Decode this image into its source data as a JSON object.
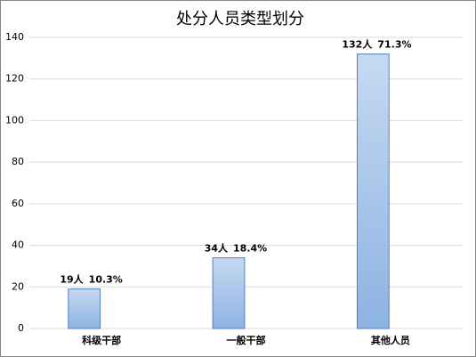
{
  "chart_data": {
    "type": "bar",
    "title": "处分人员类型划分",
    "categories": [
      "科级干部",
      "一般干部",
      "其他人员"
    ],
    "values": [
      19,
      34,
      132
    ],
    "value_labels": [
      "19人",
      "34人",
      "132人"
    ],
    "share_labels": [
      "10.3%",
      "18.4%",
      "71.3%"
    ],
    "color": "#8db3e2",
    "ylim": [
      0,
      140
    ],
    "yticks": [
      0,
      20,
      40,
      60,
      80,
      100,
      120,
      140
    ],
    "grid": true
  }
}
